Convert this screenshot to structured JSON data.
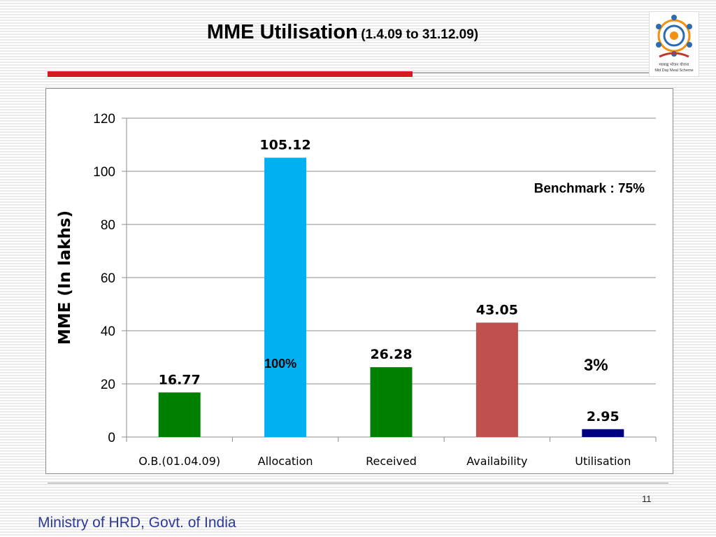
{
  "slide": {
    "title_main": "MME Utilisation",
    "title_sub": "(1.4.09 to 31.12.09)",
    "page_number": "11",
    "footer": "Ministry of HRD, Govt. of India",
    "logo_icon": "mid-day-meal-scheme-logo",
    "logo_text_1": "मध्याह्न भोजन योजना",
    "logo_text_2": "Mid Day Meal Scheme"
  },
  "chart_data": {
    "type": "bar",
    "title": "",
    "xlabel": "",
    "ylabel": "MME (In lakhs)",
    "ylim": [
      0,
      120
    ],
    "yticks": [
      0,
      20,
      40,
      60,
      80,
      100,
      120
    ],
    "grid": true,
    "categories": [
      "O.B.(01.04.09)",
      "Allocation",
      "Received",
      "Availability",
      "Utilisation"
    ],
    "values": [
      16.77,
      105.12,
      26.28,
      43.05,
      2.95
    ],
    "value_labels": [
      "16.77",
      "105.12",
      "26.28",
      "43.05",
      "2.95"
    ],
    "colors": [
      "#008000",
      "#00b0f0",
      "#008000",
      "#c0504d",
      "#000080"
    ],
    "annotations": [
      {
        "text": "100%",
        "category": "Allocation",
        "y": 26
      },
      {
        "text": "3%",
        "category": "Utilisation",
        "y": 25
      },
      {
        "text": "Benchmark : 75%",
        "category": "Utilisation",
        "y": 92
      }
    ]
  }
}
